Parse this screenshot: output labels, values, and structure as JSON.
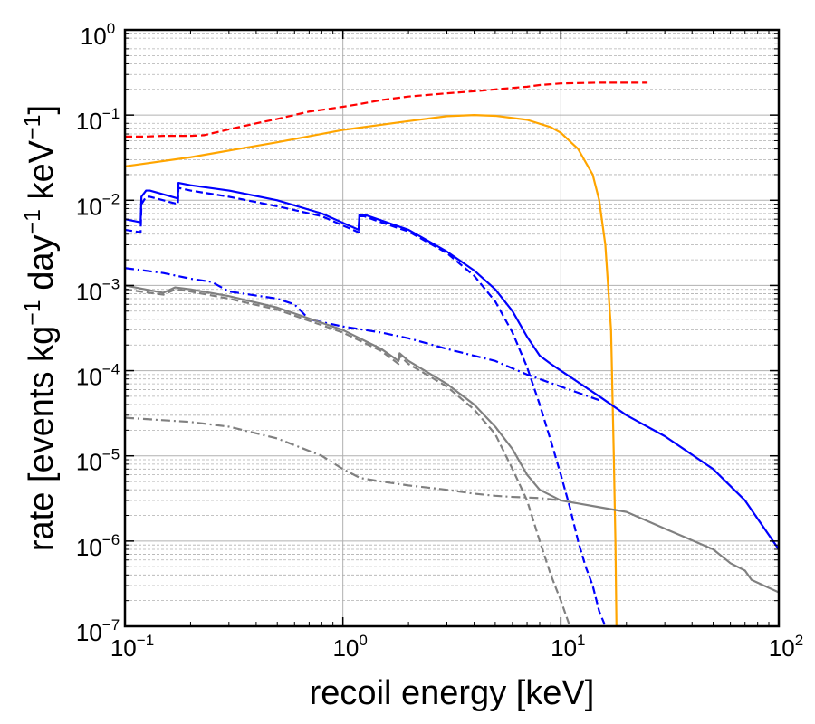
{
  "chart_data": {
    "type": "line",
    "title": "",
    "xlabel": "recoil energy [keV]",
    "ylabel_parts": [
      "rate [events kg",
      "−1",
      " day",
      "−1",
      " keV",
      "−1",
      "]"
    ],
    "x_scale": "log",
    "y_scale": "log",
    "xlim": [
      0.1,
      100
    ],
    "ylim": [
      1e-07,
      1
    ],
    "grid": true,
    "legend": "none",
    "x_ticks": [
      {
        "value": 0.1,
        "base": "10",
        "exp": "−1"
      },
      {
        "value": 1,
        "base": "10",
        "exp": "0"
      },
      {
        "value": 10,
        "base": "10",
        "exp": "1"
      },
      {
        "value": 100,
        "base": "10",
        "exp": "2"
      }
    ],
    "y_ticks": [
      {
        "value": 1e-07,
        "base": "10",
        "exp": "−7"
      },
      {
        "value": 1e-06,
        "base": "10",
        "exp": "−6"
      },
      {
        "value": 1e-05,
        "base": "10",
        "exp": "−5"
      },
      {
        "value": 0.0001,
        "base": "10",
        "exp": "−4"
      },
      {
        "value": 0.001,
        "base": "10",
        "exp": "−3"
      },
      {
        "value": 0.01,
        "base": "10",
        "exp": "−2"
      },
      {
        "value": 0.1,
        "base": "10",
        "exp": "−1"
      },
      {
        "value": 1,
        "base": "10",
        "exp": "0"
      }
    ],
    "series": [
      {
        "color": "#ff0000",
        "dash": "dashed",
        "x": [
          0.1,
          0.125,
          0.15,
          0.2,
          0.23,
          0.3,
          0.4,
          0.5,
          0.7,
          0.8,
          1,
          1.2,
          1.5,
          2,
          3,
          4,
          5,
          7,
          8,
          10,
          15,
          20,
          25
        ],
        "y": [
          0.056,
          0.056,
          0.057,
          0.057,
          0.058,
          0.068,
          0.08,
          0.09,
          0.11,
          0.115,
          0.125,
          0.135,
          0.15,
          0.165,
          0.18,
          0.19,
          0.2,
          0.215,
          0.225,
          0.235,
          0.24,
          0.24,
          0.24
        ]
      },
      {
        "color": "#ffa500",
        "dash": "solid",
        "x": [
          0.1,
          0.2,
          0.5,
          1,
          2,
          3,
          4,
          5,
          7,
          9,
          10,
          12,
          14,
          15,
          16,
          17,
          17.5,
          17.8,
          18
        ],
        "y": [
          0.025,
          0.032,
          0.048,
          0.067,
          0.085,
          0.097,
          0.1,
          0.098,
          0.088,
          0.072,
          0.062,
          0.04,
          0.02,
          0.01,
          0.003,
          0.0003,
          1e-05,
          1e-06,
          1e-07
        ]
      },
      {
        "color": "#0000ff",
        "dash": "solid",
        "x": [
          0.1,
          0.118,
          0.119,
          0.125,
          0.13,
          0.175,
          0.176,
          0.2,
          0.3,
          0.5,
          0.8,
          1.18,
          1.19,
          1.25,
          1.5,
          2,
          3,
          4,
          5,
          6,
          7,
          8,
          9,
          10,
          15,
          20,
          30,
          50,
          70,
          100
        ],
        "y": [
          0.006,
          0.0055,
          0.011,
          0.013,
          0.013,
          0.0105,
          0.016,
          0.015,
          0.013,
          0.01,
          0.007,
          0.0045,
          0.0068,
          0.0068,
          0.0058,
          0.0045,
          0.0025,
          0.0015,
          0.0009,
          0.0005,
          0.00025,
          0.00015,
          0.00012,
          0.0001,
          5e-05,
          3e-05,
          1.7e-05,
          7e-06,
          3e-06,
          8e-07
        ]
      },
      {
        "color": "#0000ff",
        "dash": "dashed",
        "x": [
          0.1,
          0.118,
          0.119,
          0.125,
          0.13,
          0.175,
          0.176,
          0.2,
          0.3,
          0.5,
          0.8,
          1.18,
          1.19,
          1.25,
          1.5,
          2,
          3,
          4,
          5,
          6,
          7,
          8,
          9,
          10,
          11,
          12,
          13,
          14,
          15,
          16
        ],
        "y": [
          0.0045,
          0.0042,
          0.009,
          0.011,
          0.011,
          0.009,
          0.014,
          0.013,
          0.011,
          0.0085,
          0.0065,
          0.0042,
          0.0065,
          0.0065,
          0.0055,
          0.0043,
          0.0024,
          0.0013,
          0.00065,
          0.00028,
          0.00011,
          4e-05,
          1.5e-05,
          6e-06,
          2.5e-06,
          1e-06,
          5e-07,
          3e-07,
          1.5e-07,
          1e-07
        ]
      },
      {
        "color": "#0000ff",
        "dash": "dashdot",
        "x": [
          0.1,
          0.15,
          0.2,
          0.25,
          0.3,
          0.5,
          0.6,
          0.7,
          1,
          1.5,
          2,
          3,
          5,
          7,
          10,
          15
        ],
        "y": [
          0.0016,
          0.0014,
          0.0012,
          0.0011,
          0.00085,
          0.0007,
          0.0006,
          0.0004,
          0.00033,
          0.00028,
          0.00024,
          0.00018,
          0.00013,
          9e-05,
          6.5e-05,
          4.5e-05
        ]
      },
      {
        "color": "#808080",
        "dash": "solid",
        "x": [
          0.1,
          0.15,
          0.17,
          0.2,
          0.3,
          0.5,
          1,
          1.5,
          1.8,
          1.82,
          2,
          3,
          4,
          5,
          6,
          7,
          8,
          10,
          15,
          20,
          30,
          50,
          60,
          70,
          75,
          100
        ],
        "y": [
          0.001,
          0.00082,
          0.00095,
          0.0009,
          0.00075,
          0.00055,
          0.0003,
          0.00018,
          0.00013,
          0.00016,
          0.00013,
          7e-05,
          4e-05,
          2.2e-05,
          1.2e-05,
          6e-06,
          4e-06,
          3e-06,
          2.5e-06,
          2.2e-06,
          1.4e-06,
          8e-07,
          5.5e-07,
          4.5e-07,
          3.5e-07,
          2.5e-07
        ]
      },
      {
        "color": "#808080",
        "dash": "dashed",
        "x": [
          0.1,
          0.15,
          0.17,
          0.2,
          0.3,
          0.5,
          1,
          1.5,
          1.8,
          1.82,
          2,
          3,
          4,
          5,
          6,
          7,
          8,
          9,
          10,
          11
        ],
        "y": [
          0.0009,
          0.00078,
          0.0009,
          0.00085,
          0.0007,
          0.00052,
          0.00028,
          0.00017,
          0.00012,
          0.00015,
          0.00012,
          6.5e-05,
          3.5e-05,
          1.8e-05,
          7e-06,
          3e-06,
          1e-06,
          4e-07,
          2e-07,
          1e-07
        ]
      },
      {
        "color": "#808080",
        "dash": "dashdot",
        "x": [
          0.1,
          0.2,
          0.3,
          0.5,
          0.8,
          1,
          1.2,
          1.5,
          2,
          3,
          4,
          5,
          6,
          8,
          10
        ],
        "y": [
          2.8e-05,
          2.5e-05,
          2.2e-05,
          1.6e-05,
          1e-05,
          7e-06,
          5.5e-06,
          5e-06,
          4.5e-06,
          4e-06,
          3.6e-06,
          3.4e-06,
          3.3e-06,
          3.2e-06,
          3e-06
        ]
      }
    ]
  }
}
